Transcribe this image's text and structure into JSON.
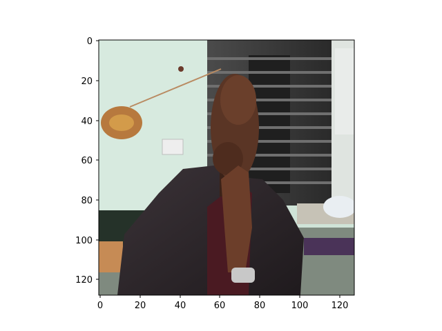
{
  "chart_data": {
    "type": "heatmap",
    "title": "",
    "xlabel": "",
    "ylabel": "",
    "xlim": [
      0,
      128
    ],
    "ylim": [
      128,
      0
    ],
    "x_ticks": [
      0,
      20,
      40,
      60,
      80,
      100,
      120
    ],
    "y_ticks": [
      0,
      20,
      40,
      60,
      80,
      100,
      120
    ],
    "x_tick_labels": [
      "0",
      "20",
      "40",
      "60",
      "80",
      "100",
      "120"
    ],
    "y_tick_labels": [
      "0",
      "20",
      "40",
      "60",
      "80",
      "100",
      "120"
    ],
    "grid": false,
    "image_content": "photo of a man in a dark suit resting his chin on his hand, in a room with a barred window"
  }
}
